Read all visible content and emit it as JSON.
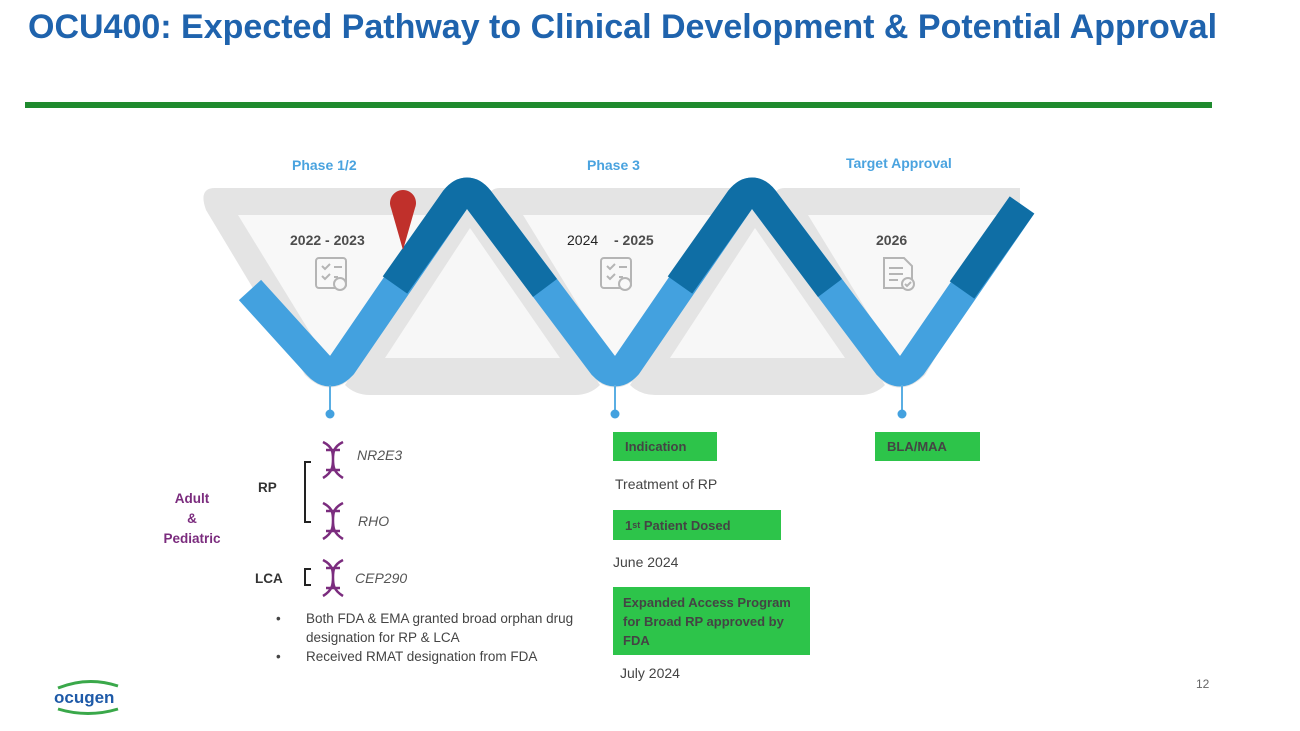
{
  "title": "OCU400: Expected Pathway to Clinical Development & Potential Approval",
  "timeline": {
    "phases": [
      {
        "label": "Phase 1/2",
        "years": "2022 - 2023"
      },
      {
        "label": "Phase 3",
        "year_start": "2024",
        "year_end": "- 2025"
      },
      {
        "label": "Target Approval",
        "years": "2026"
      }
    ]
  },
  "indications": {
    "population": [
      "Adult",
      "&",
      "Pediatric"
    ],
    "rp_label": "RP",
    "lca_label": "LCA",
    "genes": [
      "NR2E3",
      "RHO",
      "CEP290"
    ]
  },
  "bullets": [
    "Both FDA & EMA granted broad orphan drug designation for RP & LCA",
    "Received RMAT designation from FDA"
  ],
  "phase3_milestones": {
    "indication_badge": "Indication",
    "indication_text": "Treatment of RP",
    "dosed_badge_main": "1",
    "dosed_badge_sup": "st",
    "dosed_badge_rest": " Patient Dosed",
    "dosed_date": "June 2024",
    "eap_badge": "Expanded Access Program for Broad RP approved by FDA",
    "eap_date": "July 2024"
  },
  "approval_milestone": {
    "badge": "BLA/MAA"
  },
  "logo_text": "ocugen",
  "page_number": "12",
  "colors": {
    "title": "#1f63ad",
    "rule": "#1f8a2e",
    "ribbon_light": "#43a1df",
    "ribbon_dark": "#0f6ea5",
    "badge": "#2dc44a",
    "pin": "#c0302b",
    "dna": "#7b2c7e"
  }
}
